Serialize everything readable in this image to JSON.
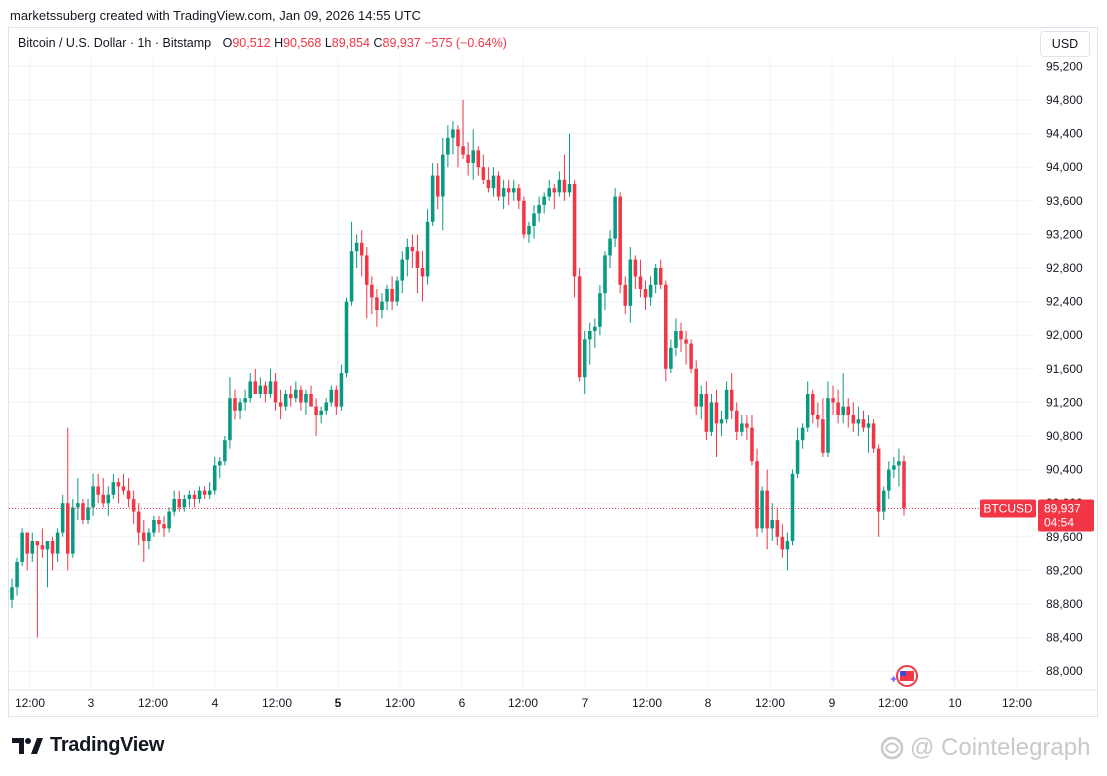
{
  "header": {
    "text": "marketssuberg created with TradingView.com, Jan 09, 2026 14:55 UTC"
  },
  "legend": {
    "symbol": "Bitcoin / U.S. Dollar · 1h · Bitstamp",
    "o_label": "O",
    "o": "90,512",
    "h_label": "H",
    "h": "90,568",
    "l_label": "L",
    "l": "89,854",
    "c_label": "C",
    "c": "89,937",
    "change": "−575 (−0.64%)"
  },
  "currency_button": "USD",
  "price_tag": {
    "symbol": "BTCUSD",
    "price": "89,937",
    "countdown": "04:54"
  },
  "footer": {
    "brand": "TradingView",
    "watermark": "Cointelegraph"
  },
  "colors": {
    "up": "#089981",
    "down": "#f23645",
    "grid": "#f0f3fa",
    "price_line": "#f23645"
  },
  "chart_data": {
    "type": "candlestick",
    "y_axis": {
      "ticks": [
        88000,
        88400,
        88800,
        89200,
        89600,
        90000,
        90400,
        90800,
        91200,
        91600,
        92000,
        92400,
        92800,
        93200,
        93600,
        94000,
        94400,
        94800,
        95200
      ],
      "range": [
        87800,
        95300
      ]
    },
    "x_axis": {
      "ticks": [
        "12:00",
        "3",
        "12:00",
        "4",
        "12:00",
        "5",
        "12:00",
        "6",
        "12:00",
        "7",
        "12:00",
        "8",
        "12:00",
        "9",
        "12:00",
        "10",
        "12:00"
      ],
      "bold_tick": "5"
    },
    "last_price": 89937,
    "candles": [
      [
        88850,
        89100,
        88750,
        89000
      ],
      [
        89000,
        89350,
        88900,
        89300
      ],
      [
        89300,
        89700,
        89250,
        89650
      ],
      [
        89650,
        89650,
        89200,
        89400
      ],
      [
        89400,
        89650,
        89300,
        89550
      ],
      [
        89550,
        89550,
        88400,
        89500
      ],
      [
        89500,
        89700,
        89350,
        89450
      ],
      [
        89450,
        89500,
        89000,
        89550
      ],
      [
        89550,
        89600,
        89200,
        89400
      ],
      [
        89400,
        89700,
        89300,
        89650
      ],
      [
        89650,
        90100,
        89600,
        90000
      ],
      [
        90000,
        90900,
        89200,
        89400
      ],
      [
        89400,
        90050,
        89350,
        89950
      ],
      [
        89950,
        90300,
        89800,
        90000
      ],
      [
        90000,
        90050,
        89750,
        89800
      ],
      [
        89800,
        90050,
        89750,
        89950
      ],
      [
        89950,
        90350,
        89850,
        90200
      ],
      [
        90200,
        90350,
        90000,
        90100
      ],
      [
        90100,
        90300,
        89950,
        90000
      ],
      [
        90000,
        90200,
        89850,
        90100
      ],
      [
        90100,
        90350,
        90050,
        90250
      ],
      [
        90250,
        90300,
        90000,
        90200
      ],
      [
        90200,
        90350,
        90100,
        90150
      ],
      [
        90150,
        90300,
        89950,
        90050
      ],
      [
        90050,
        90150,
        89750,
        89900
      ],
      [
        89900,
        90000,
        89500,
        89650
      ],
      [
        89650,
        89800,
        89300,
        89550
      ],
      [
        89550,
        89700,
        89450,
        89650
      ],
      [
        89650,
        89850,
        89600,
        89800
      ],
      [
        89800,
        89850,
        89650,
        89750
      ],
      [
        89750,
        89850,
        89600,
        89700
      ],
      [
        89700,
        89950,
        89650,
        89900
      ],
      [
        89900,
        90150,
        89850,
        90050
      ],
      [
        90050,
        90150,
        89900,
        89950
      ],
      [
        89950,
        90100,
        89900,
        90050
      ],
      [
        90050,
        90150,
        89950,
        90100
      ],
      [
        90100,
        90150,
        89950,
        90050
      ],
      [
        90050,
        90200,
        90000,
        90150
      ],
      [
        90150,
        90200,
        90050,
        90100
      ],
      [
        90100,
        90250,
        90050,
        90150
      ],
      [
        90150,
        90550,
        90100,
        90450
      ],
      [
        90450,
        90550,
        90300,
        90500
      ],
      [
        90500,
        90800,
        90450,
        90750
      ],
      [
        90750,
        91500,
        90650,
        91250
      ],
      [
        91250,
        91350,
        91000,
        91100
      ],
      [
        91100,
        91250,
        91000,
        91200
      ],
      [
        91200,
        91350,
        91100,
        91250
      ],
      [
        91250,
        91550,
        91200,
        91450
      ],
      [
        91450,
        91600,
        91350,
        91300
      ],
      [
        91300,
        91500,
        91250,
        91400
      ],
      [
        91400,
        91450,
        91200,
        91300
      ],
      [
        91300,
        91600,
        91250,
        91450
      ],
      [
        91450,
        91550,
        91100,
        91200
      ],
      [
        91200,
        91350,
        91000,
        91150
      ],
      [
        91150,
        91350,
        91100,
        91300
      ],
      [
        91300,
        91400,
        91150,
        91250
      ],
      [
        91250,
        91450,
        91200,
        91350
      ],
      [
        91350,
        91400,
        91100,
        91200
      ],
      [
        91200,
        91350,
        91050,
        91300
      ],
      [
        91300,
        91400,
        91200,
        91150
      ],
      [
        91150,
        91250,
        90800,
        91050
      ],
      [
        91050,
        91150,
        90950,
        91100
      ],
      [
        91100,
        91250,
        91050,
        91200
      ],
      [
        91200,
        91400,
        91150,
        91350
      ],
      [
        91350,
        91400,
        91050,
        91150
      ],
      [
        91150,
        91650,
        91100,
        91550
      ],
      [
        91550,
        92450,
        91500,
        92400
      ],
      [
        92400,
        93350,
        92350,
        93000
      ],
      [
        93000,
        93200,
        92800,
        93100
      ],
      [
        93100,
        93250,
        92700,
        92950
      ],
      [
        92950,
        93050,
        92200,
        92600
      ],
      [
        92600,
        92700,
        92250,
        92450
      ],
      [
        92450,
        92550,
        92100,
        92300
      ],
      [
        92300,
        92500,
        92200,
        92400
      ],
      [
        92400,
        92600,
        92300,
        92550
      ],
      [
        92550,
        92700,
        92300,
        92400
      ],
      [
        92400,
        92700,
        92350,
        92650
      ],
      [
        92650,
        93000,
        92500,
        92900
      ],
      [
        92900,
        93150,
        92700,
        93050
      ],
      [
        93050,
        93200,
        92800,
        93000
      ],
      [
        93000,
        93200,
        92500,
        92800
      ],
      [
        92800,
        93000,
        92400,
        92700
      ],
      [
        92700,
        93500,
        92600,
        93350
      ],
      [
        93350,
        94050,
        93300,
        93900
      ],
      [
        93900,
        94050,
        93500,
        93650
      ],
      [
        93650,
        94350,
        93250,
        94150
      ],
      [
        94150,
        94500,
        94000,
        94350
      ],
      [
        94350,
        94550,
        94150,
        94450
      ],
      [
        94450,
        94500,
        94000,
        94250
      ],
      [
        94250,
        94800,
        94100,
        94150
      ],
      [
        94150,
        94300,
        93900,
        94050
      ],
      [
        94050,
        94450,
        93850,
        94200
      ],
      [
        94200,
        94250,
        93900,
        94000
      ],
      [
        94000,
        94150,
        93800,
        93850
      ],
      [
        93850,
        94000,
        93700,
        93750
      ],
      [
        93750,
        94000,
        93650,
        93900
      ],
      [
        93900,
        93950,
        93600,
        93650
      ],
      [
        93650,
        93850,
        93500,
        93750
      ],
      [
        93750,
        93850,
        93550,
        93700
      ],
      [
        93700,
        93850,
        93600,
        93750
      ],
      [
        93750,
        93800,
        93500,
        93600
      ],
      [
        93600,
        93650,
        93150,
        93200
      ],
      [
        93200,
        93350,
        93100,
        93300
      ],
      [
        93300,
        93550,
        93150,
        93450
      ],
      [
        93450,
        93650,
        93350,
        93550
      ],
      [
        93550,
        93700,
        93450,
        93650
      ],
      [
        93650,
        93850,
        93600,
        93750
      ],
      [
        93750,
        93800,
        93500,
        93700
      ],
      [
        93700,
        93950,
        93650,
        93850
      ],
      [
        93850,
        94150,
        93600,
        93700
      ],
      [
        93700,
        94400,
        93650,
        93800
      ],
      [
        93800,
        93850,
        92450,
        92700
      ],
      [
        92700,
        92800,
        91450,
        91500
      ],
      [
        91500,
        92050,
        91300,
        91950
      ],
      [
        91950,
        92150,
        91650,
        92050
      ],
      [
        92050,
        92200,
        91850,
        92100
      ],
      [
        92100,
        92600,
        92000,
        92500
      ],
      [
        92500,
        93000,
        92300,
        92950
      ],
      [
        92950,
        93250,
        92800,
        93150
      ],
      [
        93150,
        93750,
        93050,
        93650
      ],
      [
        93650,
        93700,
        92500,
        92600
      ],
      [
        92600,
        92700,
        92250,
        92350
      ],
      [
        92350,
        93050,
        92150,
        92900
      ],
      [
        92900,
        92950,
        92550,
        92700
      ],
      [
        92700,
        92900,
        92450,
        92550
      ],
      [
        92550,
        92650,
        92300,
        92450
      ],
      [
        92450,
        92700,
        92350,
        92600
      ],
      [
        92600,
        92850,
        92500,
        92800
      ],
      [
        92800,
        92900,
        92550,
        92600
      ],
      [
        92600,
        92650,
        91450,
        91600
      ],
      [
        91600,
        91950,
        91550,
        91850
      ],
      [
        91850,
        92200,
        91750,
        92050
      ],
      [
        92050,
        92150,
        91800,
        91950
      ],
      [
        91950,
        92050,
        91650,
        91900
      ],
      [
        91900,
        91950,
        91550,
        91600
      ],
      [
        91600,
        91700,
        91050,
        91150
      ],
      [
        91150,
        91400,
        91000,
        91300
      ],
      [
        91300,
        91450,
        90750,
        90850
      ],
      [
        90850,
        91300,
        90800,
        91200
      ],
      [
        91200,
        91350,
        90550,
        90950
      ],
      [
        90950,
        91100,
        90800,
        91000
      ],
      [
        91000,
        91450,
        90950,
        91350
      ],
      [
        91350,
        91550,
        91000,
        91100
      ],
      [
        91100,
        91200,
        90750,
        90850
      ],
      [
        90850,
        91050,
        90800,
        90950
      ],
      [
        90950,
        91050,
        90750,
        90900
      ],
      [
        90900,
        91050,
        90450,
        90500
      ],
      [
        90500,
        90650,
        89600,
        89700
      ],
      [
        89700,
        90200,
        89650,
        90150
      ],
      [
        90150,
        90400,
        89450,
        89700
      ],
      [
        89700,
        90000,
        89550,
        89800
      ],
      [
        89800,
        89950,
        89500,
        89600
      ],
      [
        89600,
        89750,
        89350,
        89450
      ],
      [
        89450,
        89650,
        89200,
        89550
      ],
      [
        89550,
        90400,
        89500,
        90350
      ],
      [
        90350,
        90900,
        90300,
        90750
      ],
      [
        90750,
        90950,
        90650,
        90900
      ],
      [
        90900,
        91450,
        90850,
        91300
      ],
      [
        91300,
        91350,
        90950,
        91050
      ],
      [
        91050,
        91200,
        90900,
        91000
      ],
      [
        91000,
        91250,
        90550,
        90600
      ],
      [
        90600,
        91450,
        90550,
        91250
      ],
      [
        91250,
        91400,
        91050,
        91200
      ],
      [
        91200,
        91350,
        90950,
        91050
      ],
      [
        91050,
        91550,
        90950,
        91150
      ],
      [
        91150,
        91250,
        90900,
        91050
      ],
      [
        91050,
        91200,
        90850,
        90950
      ],
      [
        90950,
        91150,
        90800,
        91000
      ],
      [
        91000,
        91100,
        90850,
        90900
      ],
      [
        90900,
        91050,
        90600,
        90950
      ],
      [
        90950,
        91000,
        90600,
        90650
      ],
      [
        90650,
        90700,
        89600,
        89900
      ],
      [
        89900,
        90200,
        89800,
        90150
      ],
      [
        90150,
        90500,
        90050,
        90400
      ],
      [
        90400,
        90550,
        90300,
        90450
      ],
      [
        90450,
        90650,
        90200,
        90500
      ],
      [
        90500,
        90568,
        89854,
        89937
      ]
    ]
  }
}
